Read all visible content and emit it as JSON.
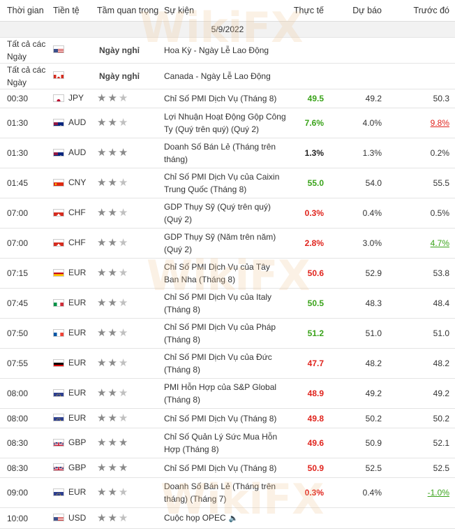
{
  "headers": {
    "time": "Thời gian",
    "currency": "Tiền tệ",
    "importance": "Tầm quan trọng",
    "event": "Sự kiện",
    "actual": "Thực tế",
    "forecast": "Dự báo",
    "previous": "Trước đó"
  },
  "date": "5/9/2022",
  "watermark": "WikiFX",
  "rows": [
    {
      "time": "Tất cả các Ngày",
      "flag": "us",
      "currency": "",
      "holiday": "Ngày nghỉ",
      "stars": 0,
      "event": "Hoa Kỳ - Ngày Lễ Lao Động",
      "actual": "",
      "actual_class": "",
      "forecast": "",
      "previous": "",
      "previous_class": "",
      "h": 29
    },
    {
      "time": "Tất cả các Ngày",
      "flag": "ca",
      "currency": "",
      "holiday": "Ngày nghỉ",
      "stars": 0,
      "event": "Canada - Ngày Lễ Lao Động",
      "actual": "",
      "actual_class": "",
      "forecast": "",
      "previous": "",
      "previous_class": "",
      "h": 28
    },
    {
      "time": "00:30",
      "flag": "jp",
      "currency": "JPY",
      "holiday": "",
      "stars": 2,
      "event": "Chỉ Số PMI Dịch Vụ (Tháng 8)",
      "actual": "49.5",
      "actual_class": "up",
      "forecast": "49.2",
      "previous": "50.3",
      "previous_class": "",
      "h": 27
    },
    {
      "time": "01:30",
      "flag": "au",
      "currency": "AUD",
      "holiday": "",
      "stars": 2,
      "event": "Lợi Nhuận Hoạt Động Gộp Công Ty (Quý trên quý) (Quý 2)",
      "actual": "7.6%",
      "actual_class": "up",
      "forecast": "4.0%",
      "previous": "9.8%",
      "previous_class": "prev-down",
      "h": 43
    },
    {
      "time": "01:30",
      "flag": "au",
      "currency": "AUD",
      "holiday": "",
      "stars": 3,
      "event": "Doanh Số Bán Lẻ (Tháng trên tháng)",
      "actual": "1.3%",
      "actual_class": "neutral",
      "forecast": "1.3%",
      "previous": "0.2%",
      "previous_class": "",
      "h": 43
    },
    {
      "time": "01:45",
      "flag": "cn",
      "currency": "CNY",
      "holiday": "",
      "stars": 2,
      "event": "Chỉ Số PMI Dịch Vụ của Caixin Trung Quốc (Tháng 8)",
      "actual": "55.0",
      "actual_class": "up",
      "forecast": "54.0",
      "previous": "55.5",
      "previous_class": "",
      "h": 43
    },
    {
      "time": "07:00",
      "flag": "ch",
      "currency": "CHF",
      "holiday": "",
      "stars": 2,
      "event": "GDP Thụy Sỹ (Quý trên quý) (Quý 2)",
      "actual": "0.3%",
      "actual_class": "down",
      "forecast": "0.4%",
      "previous": "0.5%",
      "previous_class": "",
      "h": 43
    },
    {
      "time": "07:00",
      "flag": "ch",
      "currency": "CHF",
      "holiday": "",
      "stars": 2,
      "event": "GDP Thụy Sỹ (Năm trên năm) (Quý 2)",
      "actual": "2.8%",
      "actual_class": "down",
      "forecast": "3.0%",
      "previous": "4.7%",
      "previous_class": "prev-up",
      "h": 43
    },
    {
      "time": "07:15",
      "flag": "es",
      "currency": "EUR",
      "holiday": "",
      "stars": 2,
      "event": "Chỉ Số PMI Dịch Vụ của Tây Ban Nha (Tháng 8)",
      "actual": "50.6",
      "actual_class": "down",
      "forecast": "52.9",
      "previous": "53.8",
      "previous_class": "",
      "h": 43
    },
    {
      "time": "07:45",
      "flag": "it",
      "currency": "EUR",
      "holiday": "",
      "stars": 2,
      "event": "Chỉ Số PMI Dịch Vụ của Italy (Tháng 8)",
      "actual": "50.5",
      "actual_class": "up",
      "forecast": "48.3",
      "previous": "48.4",
      "previous_class": "",
      "h": 43
    },
    {
      "time": "07:50",
      "flag": "fr",
      "currency": "EUR",
      "holiday": "",
      "stars": 2,
      "event": "Chỉ Số PMI Dịch Vụ của Pháp (Tháng 8)",
      "actual": "51.2",
      "actual_class": "up",
      "forecast": "51.0",
      "previous": "51.0",
      "previous_class": "",
      "h": 43
    },
    {
      "time": "07:55",
      "flag": "de",
      "currency": "EUR",
      "holiday": "",
      "stars": 2,
      "event": "Chỉ Số PMI Dịch Vụ của Đức (Tháng 8)",
      "actual": "47.7",
      "actual_class": "down",
      "forecast": "48.2",
      "previous": "48.2",
      "previous_class": "",
      "h": 43
    },
    {
      "time": "08:00",
      "flag": "eu",
      "currency": "EUR",
      "holiday": "",
      "stars": 2,
      "event": "PMI Hỗn Hợp của S&P Global (Tháng 8)",
      "actual": "48.9",
      "actual_class": "down",
      "forecast": "49.2",
      "previous": "49.2",
      "previous_class": "",
      "h": 43
    },
    {
      "time": "08:00",
      "flag": "eu",
      "currency": "EUR",
      "holiday": "",
      "stars": 2,
      "event": "Chỉ Số PMI Dịch Vụ (Tháng 8)",
      "actual": "49.8",
      "actual_class": "down",
      "forecast": "50.2",
      "previous": "50.2",
      "previous_class": "",
      "h": 28
    },
    {
      "time": "08:30",
      "flag": "gb",
      "currency": "GBP",
      "holiday": "",
      "stars": 3,
      "event": "Chỉ Số Quản Lý Sức Mua Hỗn Hợp (Tháng 8)",
      "actual": "49.6",
      "actual_class": "down",
      "forecast": "50.9",
      "previous": "52.1",
      "previous_class": "",
      "h": 43
    },
    {
      "time": "08:30",
      "flag": "gb",
      "currency": "GBP",
      "holiday": "",
      "stars": 3,
      "event": "Chỉ Số PMI Dịch Vụ (Tháng 8)",
      "actual": "50.9",
      "actual_class": "down",
      "forecast": "52.5",
      "previous": "52.5",
      "previous_class": "",
      "h": 28
    },
    {
      "time": "09:00",
      "flag": "eu",
      "currency": "EUR",
      "holiday": "",
      "stars": 2,
      "event": "Doanh Số Bán Lẻ (Tháng trên tháng) (Tháng 7)",
      "actual": "0.3%",
      "actual_class": "down",
      "forecast": "0.4%",
      "previous": "-1.0%",
      "previous_class": "prev-up",
      "h": 43
    },
    {
      "time": "10:00",
      "flag": "us",
      "currency": "USD",
      "holiday": "",
      "stars": 2,
      "event": "Cuộc họp OPEC",
      "actual": "",
      "actual_class": "",
      "forecast": "",
      "previous": "",
      "previous_class": "",
      "speaker": true,
      "h": 30
    }
  ]
}
